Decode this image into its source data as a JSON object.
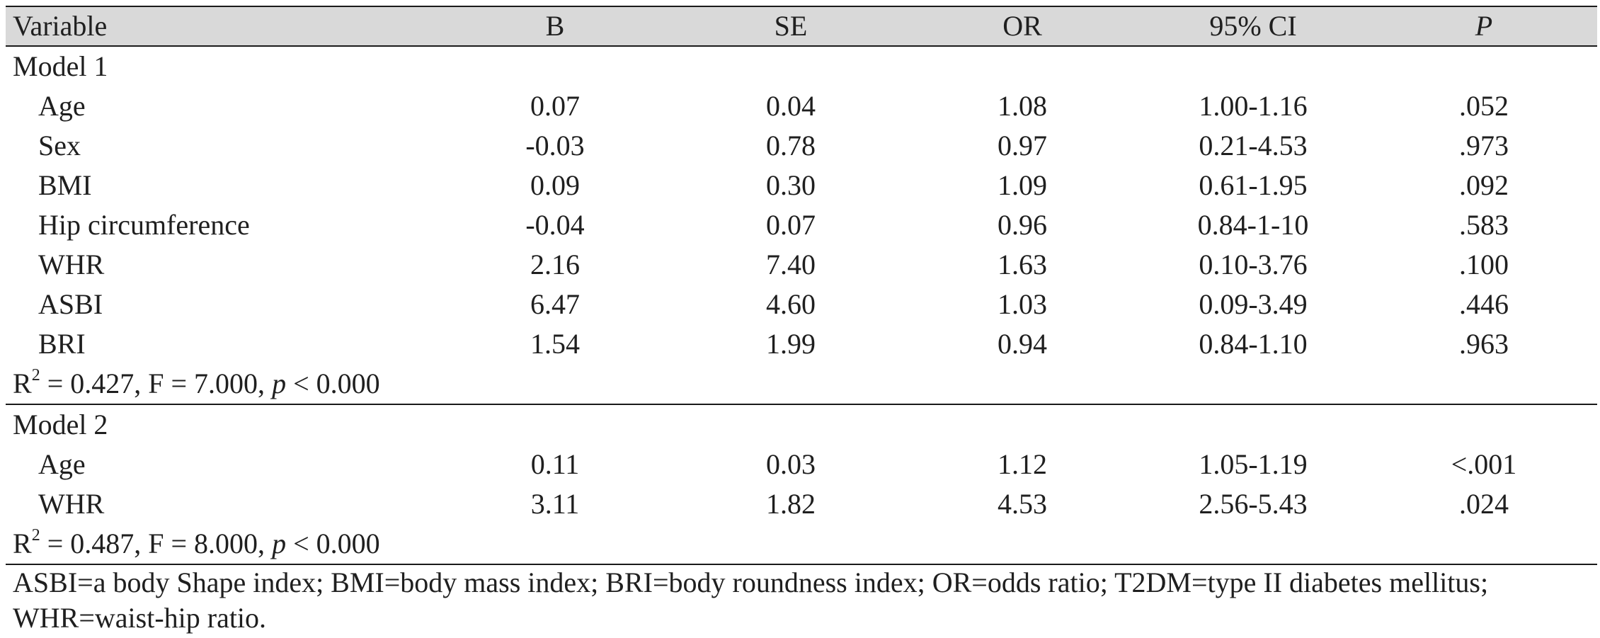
{
  "header": {
    "variable": "Variable",
    "b": "B",
    "se": "SE",
    "or": "OR",
    "ci": "95% CI",
    "p": "P"
  },
  "model1": {
    "title": "Model 1",
    "rows": [
      {
        "variable": "Age",
        "b": "0.07",
        "se": "0.04",
        "or": "1.08",
        "ci": "1.00-1.16",
        "p": ".052"
      },
      {
        "variable": "Sex",
        "b": "-0.03",
        "se": "0.78",
        "or": "0.97",
        "ci": "0.21-4.53",
        "p": ".973"
      },
      {
        "variable": "BMI",
        "b": "0.09",
        "se": "0.30",
        "or": "1.09",
        "ci": "0.61-1.95",
        "p": ".092"
      },
      {
        "variable": "Hip circumference",
        "b": "-0.04",
        "se": "0.07",
        "or": "0.96",
        "ci": "0.84-1-10",
        "p": ".583"
      },
      {
        "variable": "WHR",
        "b": "2.16",
        "se": "7.40",
        "or": "1.63",
        "ci": "0.10-3.76",
        "p": ".100"
      },
      {
        "variable": "ASBI",
        "b": "6.47",
        "se": "4.60",
        "or": "1.03",
        "ci": "0.09-3.49",
        "p": ".446"
      },
      {
        "variable": "BRI",
        "b": "1.54",
        "se": "1.99",
        "or": "0.94",
        "ci": "0.84-1.10",
        "p": ".963"
      }
    ],
    "stats": {
      "r": "R",
      "sup": "2",
      "eq": " = 0.427, F = 7.000, ",
      "p": "p",
      "tail": " < 0.000"
    }
  },
  "model2": {
    "title": "Model 2",
    "rows": [
      {
        "variable": "Age",
        "b": "0.11",
        "se": "0.03",
        "or": "1.12",
        "ci": "1.05-1.19",
        "p": "<.001"
      },
      {
        "variable": "WHR",
        "b": "3.11",
        "se": "1.82",
        "or": "4.53",
        "ci": "2.56-5.43",
        "p": ".024"
      }
    ],
    "stats": {
      "r": "R",
      "sup": "2",
      "eq": " = 0.487, F = 8.000, ",
      "p": "p",
      "tail": " < 0.000"
    }
  },
  "footnote": {
    "line1": "ASBI=a body Shape index; BMI=body mass index; BRI=body roundness index; OR=odds ratio; T2DM=type II diabetes mellitus;",
    "line2": "WHR=waist-hip ratio."
  }
}
